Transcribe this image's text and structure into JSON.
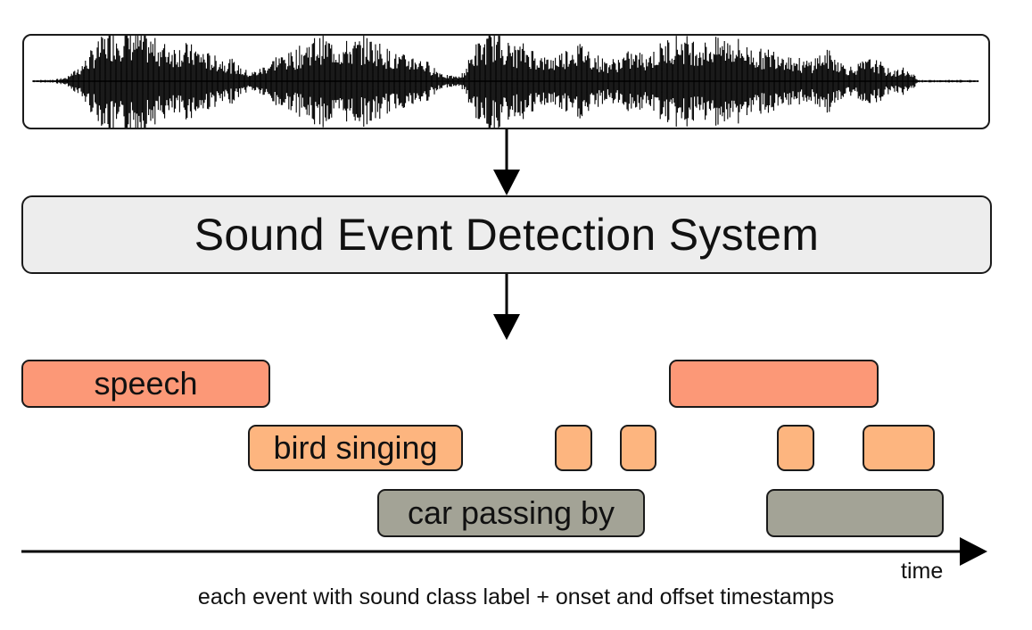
{
  "system": {
    "label": "Sound Event Detection System"
  },
  "axis": {
    "label": "time"
  },
  "caption": "each event with sound class label + onset and offset timestamps",
  "classes": [
    {
      "id": "speech",
      "label": "speech",
      "color": "#fc9877"
    },
    {
      "id": "bird",
      "label": "bird singing",
      "color": "#fdb57f"
    },
    {
      "id": "car",
      "label": "car passing by",
      "color": "#a3a396"
    }
  ],
  "colors": {
    "stroke": "#1a1a1a",
    "system_fill": "#ededed",
    "waveform": "#000000"
  }
}
